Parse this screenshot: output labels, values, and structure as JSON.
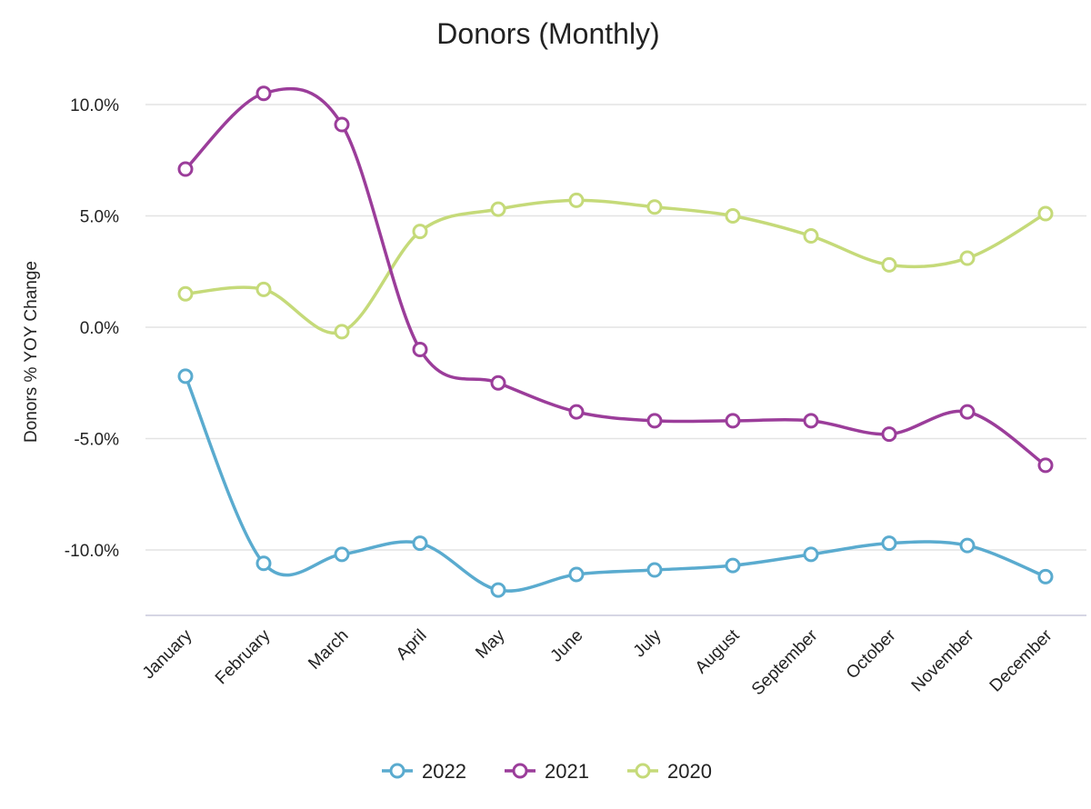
{
  "chart_data": {
    "type": "line",
    "title": "Donors (Monthly)",
    "xlabel": "",
    "ylabel": "Donors % YOY Change",
    "categories": [
      "January",
      "February",
      "March",
      "April",
      "May",
      "June",
      "July",
      "August",
      "September",
      "October",
      "November",
      "December"
    ],
    "ylim": [
      -12.7,
      10.5
    ],
    "yticks": [
      10,
      5,
      0,
      -5,
      -10
    ],
    "ytick_labels": [
      "10.0%",
      "5.0%",
      "0.0%",
      "-5.0%",
      "-10.0%"
    ],
    "grid": true,
    "legend_position": "bottom",
    "series": [
      {
        "name": "2022",
        "color": "#5aabcf",
        "values": [
          -2.2,
          -10.6,
          -10.2,
          -9.7,
          -11.8,
          -11.1,
          -10.9,
          -10.7,
          -10.2,
          -9.7,
          -9.8,
          -11.2
        ]
      },
      {
        "name": "2021",
        "color": "#9b3d9a",
        "values": [
          7.1,
          10.5,
          9.1,
          -1.0,
          -2.5,
          -3.8,
          -4.2,
          -4.2,
          -4.2,
          -4.8,
          -3.8,
          -6.2
        ]
      },
      {
        "name": "2020",
        "color": "#c5da79",
        "values": [
          1.5,
          1.7,
          -0.2,
          4.3,
          5.3,
          5.7,
          5.4,
          5.0,
          4.1,
          2.8,
          3.1,
          5.1
        ]
      }
    ]
  }
}
